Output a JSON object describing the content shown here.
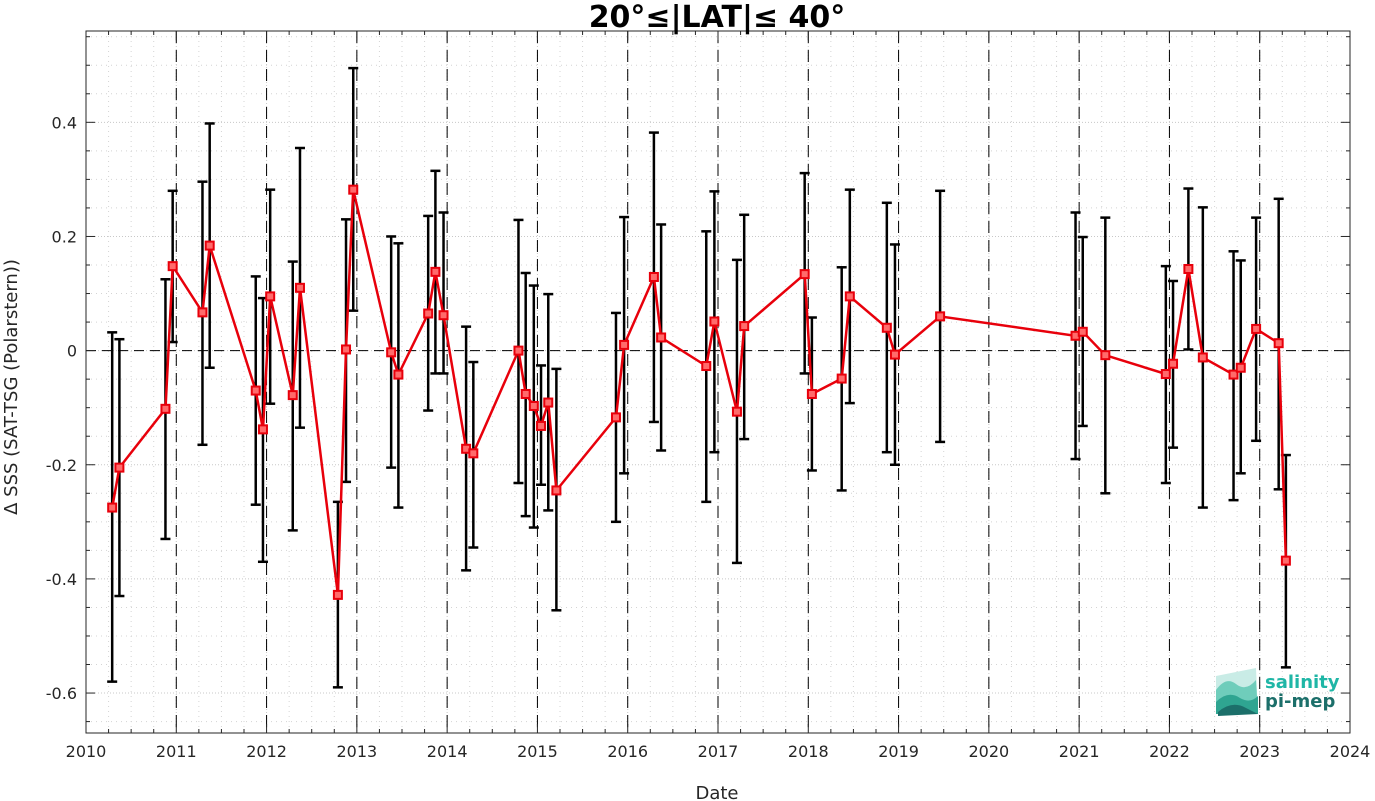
{
  "chart_data": {
    "type": "line",
    "title": "20°≤|LAT|≤ 40°",
    "xlabel": "Date",
    "ylabel": "Δ SSS (SAT-TSG (Polarstern))",
    "xlim": [
      2010,
      2024
    ],
    "ylim": [
      -0.67,
      0.56
    ],
    "x_ticks": [
      "2010",
      "2011",
      "2012",
      "2013",
      "2014",
      "2015",
      "2016",
      "2017",
      "2018",
      "2019",
      "2020",
      "2021",
      "2022",
      "2023",
      "2024"
    ],
    "y_ticks": [
      "-0.6",
      "-0.4",
      "-0.2",
      "0",
      "0.2",
      "0.4"
    ],
    "y_tick_values": [
      -0.6,
      -0.4,
      -0.2,
      0,
      0.2,
      0.4
    ],
    "grid": true,
    "zero_line": true,
    "year_lines": [
      2011,
      2012,
      2013,
      2014,
      2015,
      2016,
      2017,
      2018,
      2019,
      2020,
      2021,
      2022,
      2023
    ],
    "colors": {
      "series": "#e8000b",
      "errorbar": "#000000",
      "grid": "#b0b0b0"
    },
    "series": [
      {
        "x": [
          2010.29,
          2010.37,
          2010.88,
          2010.96,
          2011.29,
          2011.37,
          2011.88,
          2011.96,
          2012.04,
          2012.29,
          2012.37,
          2012.79,
          2012.88,
          2012.96,
          2013.38,
          2013.46,
          2013.79,
          2013.87,
          2013.96,
          2014.21,
          2014.29,
          2014.79,
          2014.87,
          2014.96,
          2015.04,
          2015.12,
          2015.21,
          2015.87,
          2015.96,
          2016.29,
          2016.37,
          2016.87,
          2016.96,
          2017.21,
          2017.29,
          2017.96,
          2018.04,
          2018.37,
          2018.46,
          2018.87,
          2018.96,
          2019.46,
          2020.96,
          2021.04,
          2021.29,
          2021.96,
          2022.04,
          2022.21,
          2022.37,
          2022.71,
          2022.79,
          2022.96,
          2023.21,
          2023.29
        ],
        "y": [
          -0.275,
          -0.205,
          -0.102,
          0.148,
          0.067,
          0.184,
          -0.07,
          -0.138,
          0.095,
          -0.078,
          0.11,
          -0.428,
          0.002,
          0.282,
          -0.003,
          -0.042,
          0.065,
          0.138,
          0.062,
          -0.172,
          -0.18,
          0,
          -0.076,
          -0.097,
          -0.132,
          -0.091,
          -0.245,
          -0.117,
          0.01,
          0.129,
          0.023,
          -0.027,
          0.051,
          -0.107,
          0.043,
          0.134,
          -0.076,
          -0.049,
          0.095,
          0.04,
          -0.007,
          0.06,
          0.026,
          0.033,
          -0.008,
          -0.041,
          -0.023,
          0.143,
          -0.012,
          -0.042,
          -0.03,
          0.038,
          0.013,
          -0.368
        ],
        "err_low": [
          -0.58,
          -0.43,
          -0.33,
          0.015,
          -0.165,
          -0.03,
          -0.27,
          -0.37,
          -0.093,
          -0.315,
          -0.135,
          -0.59,
          -0.23,
          0.07,
          -0.205,
          -0.275,
          -0.105,
          -0.04,
          -0.04,
          -0.385,
          -0.345,
          -0.232,
          -0.29,
          -0.31,
          -0.235,
          -0.28,
          -0.455,
          -0.3,
          -0.215,
          -0.125,
          -0.175,
          -0.265,
          -0.178,
          -0.372,
          -0.155,
          -0.04,
          -0.21,
          -0.245,
          -0.092,
          -0.178,
          -0.2,
          -0.16,
          -0.19,
          -0.132,
          -0.25,
          -0.232,
          -0.17,
          0.002,
          -0.275,
          -0.262,
          -0.215,
          -0.158,
          -0.243,
          -0.555
        ],
        "err_high": [
          0.032,
          0.02,
          0.125,
          0.28,
          0.296,
          0.398,
          0.13,
          0.092,
          0.282,
          0.156,
          0.355,
          -0.265,
          0.23,
          0.495,
          0.2,
          0.188,
          0.236,
          0.315,
          0.242,
          0.042,
          -0.02,
          0.229,
          0.136,
          0.114,
          -0.026,
          0.099,
          -0.032,
          0.066,
          0.234,
          0.382,
          0.221,
          0.209,
          0.279,
          0.159,
          0.238,
          0.311,
          0.058,
          0.146,
          0.282,
          0.259,
          0.186,
          0.28,
          0.242,
          0.199,
          0.233,
          0.148,
          0.122,
          0.284,
          0.251,
          0.174,
          0.158,
          0.233,
          0.266,
          -0.183
        ]
      }
    ]
  },
  "logo": {
    "line1": "salinity",
    "line2": "pi-mep",
    "color1": "#1fb6a6",
    "color2": "#1c6f6a"
  }
}
